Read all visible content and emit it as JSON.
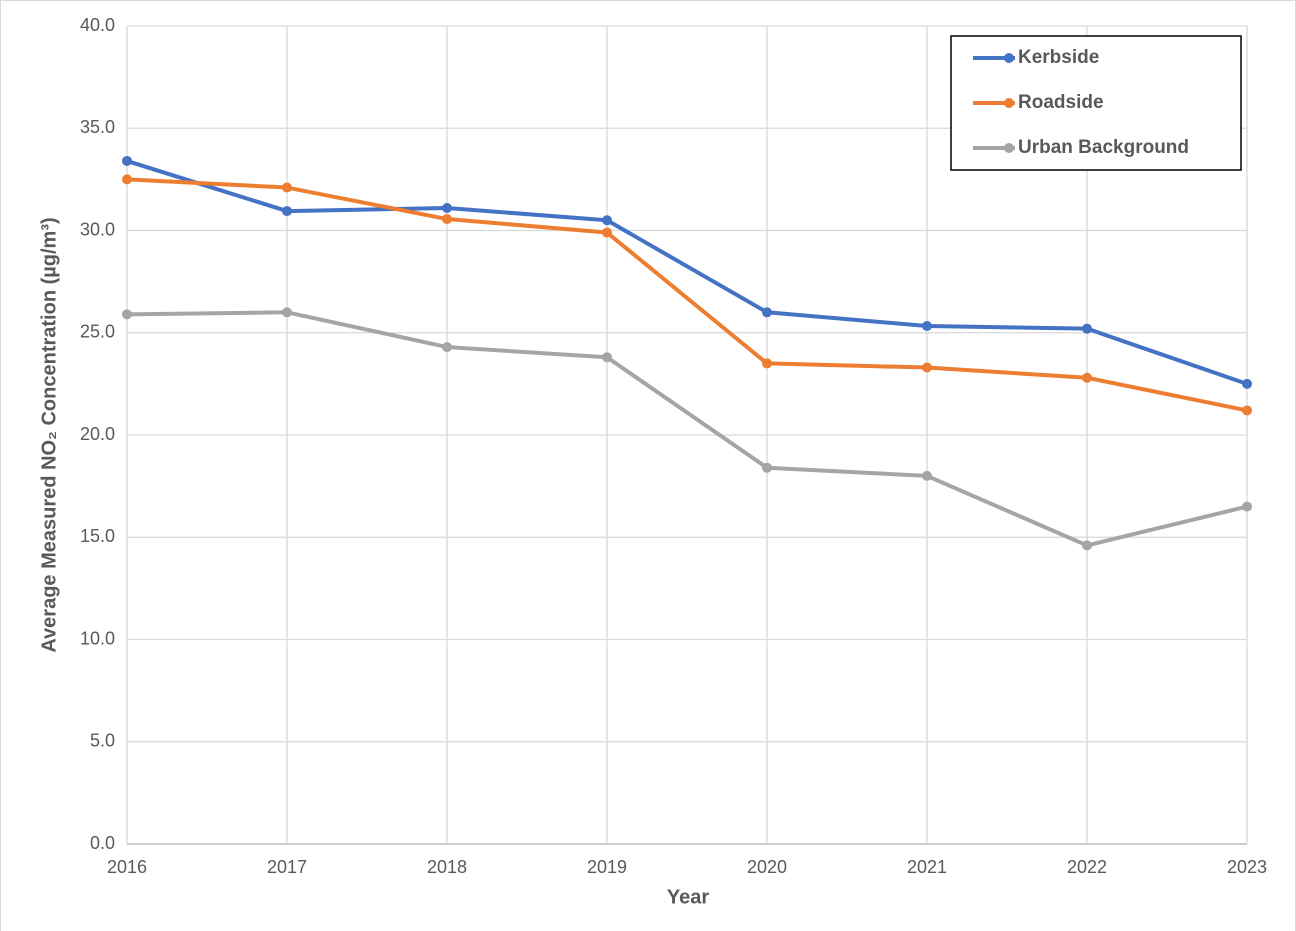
{
  "chart_data": {
    "type": "line",
    "x_label": "Year",
    "y_label": "Average Measured NO₂ Concentration (µg/m³)",
    "categories": [
      "2016",
      "2017",
      "2018",
      "2019",
      "2020",
      "2021",
      "2022",
      "2023"
    ],
    "series": [
      {
        "name": "Kerbside",
        "color": "#4472c4",
        "values": [
          33.4,
          30.95,
          31.1,
          30.5,
          26.0,
          25.33,
          25.2,
          22.5
        ]
      },
      {
        "name": "Roadside",
        "color": "#ed7d31",
        "values": [
          32.5,
          32.1,
          30.56,
          29.9,
          23.5,
          23.3,
          22.8,
          21.2
        ]
      },
      {
        "name": "Urban Background",
        "color": "#a5a5a5",
        "values": [
          25.9,
          26.0,
          24.3,
          23.8,
          18.4,
          18.0,
          14.6,
          16.5
        ]
      }
    ],
    "ylim": [
      0,
      40
    ],
    "yticks": [
      {
        "value": 0,
        "label": "0.0"
      },
      {
        "value": 5,
        "label": "5.0"
      },
      {
        "value": 10,
        "label": "10.0"
      },
      {
        "value": 15,
        "label": "15.0"
      },
      {
        "value": 20,
        "label": "20.0"
      },
      {
        "value": 25,
        "label": "25.0"
      },
      {
        "value": 30,
        "label": "30.0"
      },
      {
        "value": 35,
        "label": "35.0"
      },
      {
        "value": 40,
        "label": "40.0"
      }
    ],
    "grid": true,
    "legend": "upper right"
  }
}
